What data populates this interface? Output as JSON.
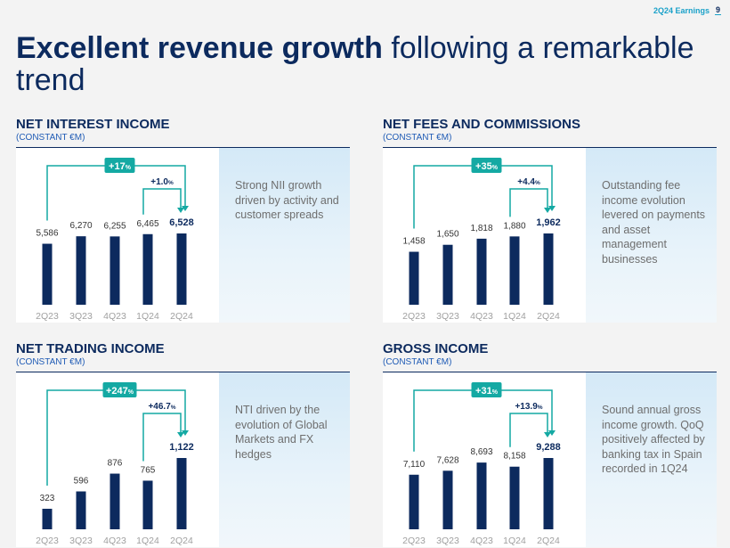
{
  "header": {
    "tag": "2Q24 Earnings",
    "page": "9"
  },
  "title": {
    "bold": "Excellent revenue growth",
    "rest": " following a remarkable trend"
  },
  "panels": [
    {
      "title": "NET INTEREST INCOME",
      "subtitle": "(CONSTANT €M)",
      "description": "Strong NII growth driven by activity and customer spreads",
      "yoy": {
        "value": "+17",
        "unit": "%"
      },
      "qoq": {
        "value": "+1.0",
        "unit": "%"
      },
      "highlight_color": "#14a9a3",
      "bar_color": "#0c2a5e"
    },
    {
      "title": "NET FEES AND COMMISSIONS",
      "subtitle": "(CONSTANT €M)",
      "description": "Outstanding fee income evolution levered on payments and asset management businesses",
      "yoy": {
        "value": "+35",
        "unit": "%"
      },
      "qoq": {
        "value": "+4.4",
        "unit": "%"
      },
      "highlight_color": "#14a9a3",
      "bar_color": "#0c2a5e"
    },
    {
      "title": "NET TRADING INCOME",
      "subtitle": "(CONSTANT €M)",
      "description": "NTI driven by the evolution of Global Markets and FX hedges",
      "yoy": {
        "value": "+247",
        "unit": "%"
      },
      "qoq": {
        "value": "+46.7",
        "unit": "%"
      },
      "highlight_color": "#14a9a3",
      "bar_color": "#0c2a5e"
    },
    {
      "title": "GROSS INCOME",
      "subtitle": "(CONSTANT €M)",
      "description": "Sound annual gross income growth. QoQ positively affected by banking tax in Spain recorded in 1Q24",
      "yoy": {
        "value": "+31",
        "unit": "%"
      },
      "qoq": {
        "value": "+13.9",
        "unit": "%"
      },
      "highlight_color": "#14a9a3",
      "bar_color": "#0c2a5e"
    }
  ],
  "chart_data": [
    {
      "type": "bar",
      "title": "NET INTEREST INCOME",
      "categories": [
        "2Q23",
        "3Q23",
        "4Q23",
        "1Q24",
        "2Q24"
      ],
      "values": [
        5586,
        6270,
        6255,
        6465,
        6528
      ],
      "value_labels": [
        "5,586",
        "6,270",
        "6,255",
        "6,465",
        "6,528"
      ],
      "ylim": [
        0,
        6528
      ],
      "grid": false,
      "annotations": [
        "+17%",
        "+1.0%"
      ]
    },
    {
      "type": "bar",
      "title": "NET FEES AND COMMISSIONS",
      "categories": [
        "2Q23",
        "3Q23",
        "4Q23",
        "1Q24",
        "2Q24"
      ],
      "values": [
        1458,
        1650,
        1818,
        1880,
        1962
      ],
      "value_labels": [
        "1,458",
        "1,650",
        "1,818",
        "1,880",
        "1,962"
      ],
      "ylim": [
        0,
        1962
      ],
      "grid": false,
      "annotations": [
        "+35%",
        "+4.4%"
      ]
    },
    {
      "type": "bar",
      "title": "NET TRADING INCOME",
      "categories": [
        "2Q23",
        "3Q23",
        "4Q23",
        "1Q24",
        "2Q24"
      ],
      "values": [
        323,
        596,
        876,
        765,
        1122
      ],
      "value_labels": [
        "323",
        "596",
        "876",
        "765",
        "1,122"
      ],
      "ylim": [
        0,
        1122
      ],
      "grid": false,
      "annotations": [
        "+247%",
        "+46.7%"
      ]
    },
    {
      "type": "bar",
      "title": "GROSS INCOME",
      "categories": [
        "2Q23",
        "3Q23",
        "4Q23",
        "1Q24",
        "2Q24"
      ],
      "values": [
        7110,
        7628,
        8693,
        8158,
        9288
      ],
      "value_labels": [
        "7,110",
        "7,628",
        "8,693",
        "8,158",
        "9,288"
      ],
      "ylim": [
        0,
        9288
      ],
      "grid": false,
      "annotations": [
        "+31%",
        "+13.9%"
      ]
    }
  ]
}
